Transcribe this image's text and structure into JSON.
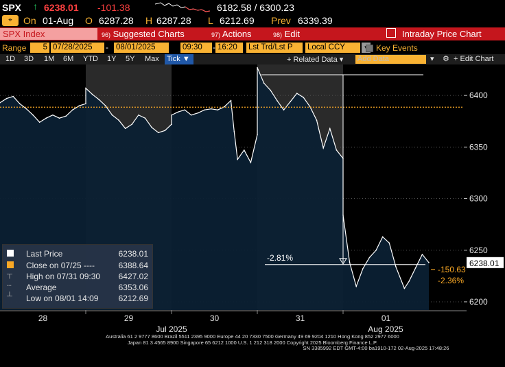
{
  "header": {
    "ticker": "SPX",
    "last_price": "6238.01",
    "change": "-101.38",
    "range": "6182.58 / 6300.23",
    "on_label": "On",
    "date": "01-Aug",
    "open_label": "O",
    "open": "6287.28",
    "high_label": "H",
    "high": "6287.28",
    "low_label": "L",
    "low": "6212.69",
    "prev_label": "Prev",
    "prev": "6339.39"
  },
  "titlebar": {
    "security": "SPX Index",
    "suggested": "Suggested Charts",
    "actions": "Actions",
    "edit": "Edit",
    "title": "Intraday Price Chart"
  },
  "toolbar": {
    "range_label": "Range",
    "range_num": "5",
    "start_date": "07/28/2025",
    "end_date": "08/01/2025",
    "start_time": "09:30",
    "end_time": "16:20",
    "price_type": "Lst Trd/Lst P",
    "currency": "Local CCY",
    "key_events": "Key Events"
  },
  "subtoolbar": {
    "periods": [
      "1D",
      "3D",
      "1M",
      "6M",
      "YTD",
      "1Y",
      "5Y",
      "Max"
    ],
    "tick": "Tick",
    "related_data": "+ Related Data",
    "add_data_placeholder": "Add Data",
    "edit_chart": "Edit Chart"
  },
  "chart_data": {
    "type": "line",
    "series": [
      {
        "name": "Last Price",
        "points": [
          [
            "07-28 09:30",
            6393
          ],
          [
            "07-28 10:00",
            6397
          ],
          [
            "07-28 10:30",
            6399
          ],
          [
            "07-28 11:00",
            6392
          ],
          [
            "07-28 11:30",
            6387
          ],
          [
            "07-28 12:00",
            6381
          ],
          [
            "07-28 12:30",
            6374
          ],
          [
            "07-28 13:00",
            6378
          ],
          [
            "07-28 13:30",
            6381
          ],
          [
            "07-28 14:00",
            6378
          ],
          [
            "07-28 14:30",
            6380
          ],
          [
            "07-28 15:00",
            6386
          ],
          [
            "07-28 15:30",
            6390
          ],
          [
            "07-28 16:00",
            6392
          ],
          [
            "07-29 09:30",
            6407
          ],
          [
            "07-29 10:00",
            6401
          ],
          [
            "07-29 10:30",
            6396
          ],
          [
            "07-29 11:00",
            6390
          ],
          [
            "07-29 11:30",
            6381
          ],
          [
            "07-29 12:00",
            6376
          ],
          [
            "07-29 12:30",
            6368
          ],
          [
            "07-29 13:00",
            6372
          ],
          [
            "07-29 13:30",
            6381
          ],
          [
            "07-29 14:00",
            6378
          ],
          [
            "07-29 14:30",
            6369
          ],
          [
            "07-29 15:00",
            6364
          ],
          [
            "07-29 15:30",
            6366
          ],
          [
            "07-29 16:00",
            6372
          ],
          [
            "07-30 09:30",
            6381
          ],
          [
            "07-30 10:00",
            6384
          ],
          [
            "07-30 10:30",
            6386
          ],
          [
            "07-30 11:00",
            6381
          ],
          [
            "07-30 11:30",
            6383
          ],
          [
            "07-30 12:00",
            6386
          ],
          [
            "07-30 12:30",
            6387
          ],
          [
            "07-30 13:00",
            6386
          ],
          [
            "07-30 13:30",
            6389
          ],
          [
            "07-30 14:00",
            6395
          ],
          [
            "07-30 14:15",
            6365
          ],
          [
            "07-30 14:30",
            6338
          ],
          [
            "07-30 15:00",
            6347
          ],
          [
            "07-30 15:30",
            6335
          ],
          [
            "07-30 16:00",
            6362
          ],
          [
            "07-31 09:30",
            6427
          ],
          [
            "07-31 10:00",
            6412
          ],
          [
            "07-31 10:30",
            6405
          ],
          [
            "07-31 11:00",
            6395
          ],
          [
            "07-31 11:30",
            6386
          ],
          [
            "07-31 12:00",
            6394
          ],
          [
            "07-31 12:30",
            6402
          ],
          [
            "07-31 13:00",
            6398
          ],
          [
            "07-31 13:30",
            6389
          ],
          [
            "07-31 14:00",
            6376
          ],
          [
            "07-31 14:30",
            6349
          ],
          [
            "07-31 15:00",
            6368
          ],
          [
            "07-31 15:30",
            6347
          ],
          [
            "07-31 16:00",
            6339
          ],
          [
            "08-01 09:30",
            6284
          ],
          [
            "08-01 10:00",
            6238
          ],
          [
            "08-01 10:30",
            6215
          ],
          [
            "08-01 11:00",
            6232
          ],
          [
            "08-01 11:30",
            6243
          ],
          [
            "08-01 12:00",
            6250
          ],
          [
            "08-01 12:30",
            6263
          ],
          [
            "08-01 13:00",
            6257
          ],
          [
            "08-01 13:30",
            6234
          ],
          [
            "08-01 14:09",
            6213
          ],
          [
            "08-01 14:30",
            6220
          ],
          [
            "08-01 15:00",
            6233
          ],
          [
            "08-01 15:30",
            6246
          ],
          [
            "08-01 16:00",
            6238
          ]
        ]
      }
    ],
    "x_categories": [
      "28",
      "29",
      "30",
      "31",
      "01"
    ],
    "x_month_labels": [
      "Jul 2025",
      "Aug 2025"
    ],
    "y_ticks": [
      6200,
      6250,
      6300,
      6350,
      6400
    ],
    "ylim": [
      6192,
      6430
    ],
    "reference_line": {
      "label": "Close on 07/25",
      "value": 6388.64,
      "color": "#f9a825"
    },
    "annotations": [
      {
        "type": "change_pct",
        "text": "-2.81%",
        "value": -2.81
      },
      {
        "type": "tag",
        "text": "-150.63",
        "color": "#f9a825"
      },
      {
        "type": "tag",
        "text": "-2.36%",
        "color": "#f9a825"
      },
      {
        "type": "price_tag",
        "text": "6238.01"
      }
    ],
    "colors": {
      "line": "#ffffff",
      "fill": "#0b2033",
      "grid": "#555555",
      "shade": "#2a2a2a"
    }
  },
  "legend": [
    {
      "label": "Last Price",
      "value": "6238.01"
    },
    {
      "label": "Close on 07/25 ----",
      "value": "6388.64"
    },
    {
      "label": "High on 07/31 09:30",
      "value": "6427.02"
    },
    {
      "label": "Average",
      "value": "6353.06"
    },
    {
      "label": "Low on 08/01 14:09",
      "value": "6212.69"
    }
  ],
  "footer": {
    "line1": "Australia 61 2 9777 8600 Brazil 5511 2395 9000 Europe 44 20 7330 7500 Germany 49 69 9204 1210 Hong Kong 852 2977 6000",
    "line2": "Japan 81 3 4565 8900       Singapore 65 6212 1000       U.S. 1 212 318 2000          Copyright 2025 Bloomberg Finance L.P.",
    "line3": "SN 3385992 EDT  GMT-4:00 ba1910-172 02-Aug-2025 17:48:26"
  }
}
